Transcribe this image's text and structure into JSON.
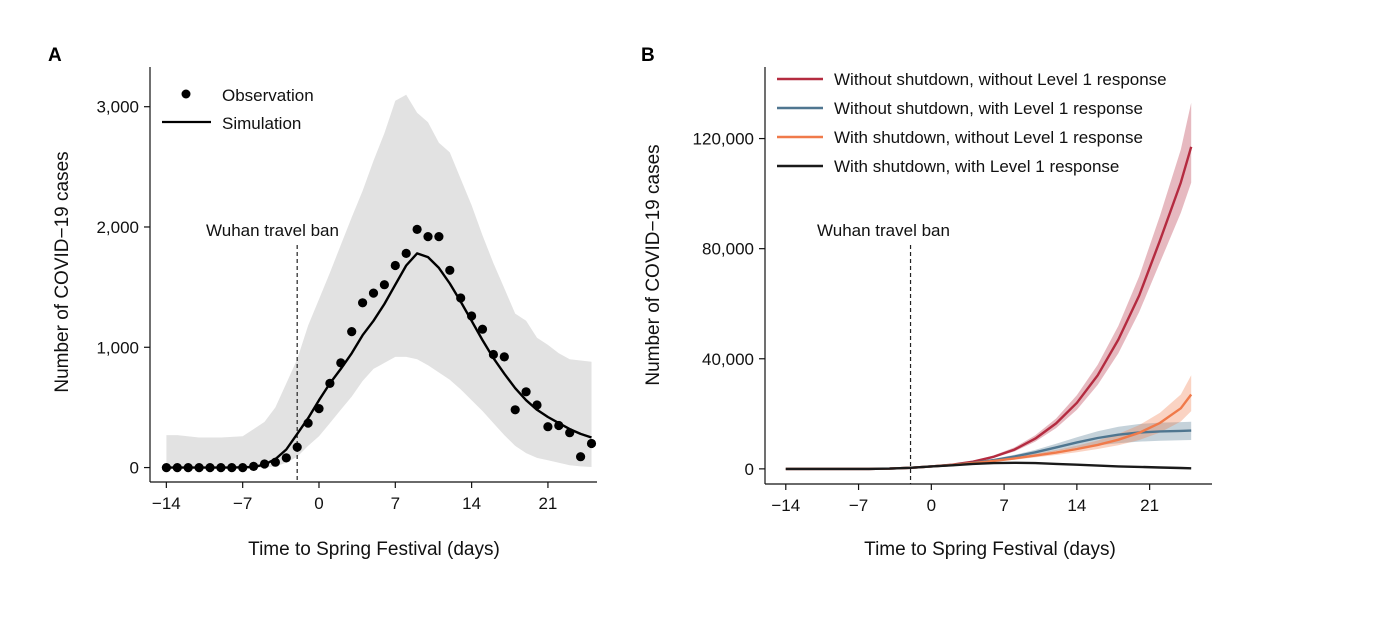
{
  "chart_data": [
    {
      "panel": "A",
      "type": "line",
      "xlabel": "Time to Spring Festival (days)",
      "ylabel": "Number of COVID−19 cases",
      "xlim": [
        -15.5,
        25.5
      ],
      "ylim": [
        -120,
        3330
      ],
      "xticks": [
        -14,
        -7,
        0,
        7,
        14,
        21
      ],
      "xtick_labels": [
        "−14",
        "−7",
        "0",
        "7",
        "14",
        "21"
      ],
      "yticks": [
        0,
        1000,
        2000,
        3000
      ],
      "ytick_labels": [
        "0",
        "1,000",
        "2,000",
        "3,000"
      ],
      "grid": false,
      "legend_position": "top-left",
      "series": [
        {
          "name": "Observation",
          "kind": "points",
          "color": "#000000",
          "x": [
            -14,
            -13,
            -12,
            -11,
            -10,
            -9,
            -8,
            -7,
            -6,
            -5,
            -4,
            -3,
            -2,
            -1,
            0,
            1,
            2,
            3,
            4,
            5,
            6,
            7,
            8,
            9,
            10,
            11,
            12,
            13,
            14,
            15,
            16,
            17,
            18,
            19,
            20,
            21,
            22,
            23,
            24,
            25
          ],
          "y": [
            0,
            0,
            0,
            0,
            0,
            0,
            0,
            0,
            10,
            30,
            45,
            80,
            170,
            370,
            490,
            700,
            870,
            1130,
            1370,
            1450,
            1520,
            1680,
            1780,
            1980,
            1920,
            1920,
            1640,
            1410,
            1260,
            1150,
            940,
            920,
            480,
            630,
            520,
            340,
            350,
            290,
            90,
            200
          ]
        },
        {
          "name": "Simulation",
          "kind": "line",
          "color": "#000000",
          "x": [
            -14,
            -12,
            -10,
            -8,
            -6,
            -5,
            -4,
            -3,
            -2,
            -1,
            0,
            1,
            2,
            3,
            4,
            5,
            6,
            7,
            8,
            9,
            10,
            11,
            12,
            13,
            14,
            15,
            16,
            17,
            18,
            19,
            20,
            21,
            22,
            23,
            24,
            25
          ],
          "y": [
            0,
            0,
            0,
            0,
            5,
            25,
            70,
            150,
            280,
            410,
            560,
            700,
            820,
            950,
            1100,
            1220,
            1360,
            1520,
            1680,
            1780,
            1750,
            1660,
            1530,
            1380,
            1220,
            1060,
            910,
            780,
            660,
            560,
            480,
            420,
            370,
            320,
            280,
            250
          ]
        },
        {
          "name": "",
          "kind": "band",
          "color": "#e2e2e2",
          "x": [
            -14,
            -13,
            -11,
            -9,
            -7,
            -6,
            -5,
            -4,
            -3,
            -2,
            -1,
            0,
            1,
            2,
            3,
            4,
            5,
            6,
            7,
            8,
            9,
            10,
            11,
            12,
            13,
            14,
            15,
            16,
            17,
            18,
            19,
            20,
            21,
            22,
            23,
            24,
            25
          ],
          "lower": [
            0,
            0,
            0,
            0,
            0,
            0,
            0,
            10,
            40,
            90,
            180,
            260,
            370,
            480,
            590,
            720,
            820,
            870,
            920,
            920,
            900,
            850,
            790,
            730,
            650,
            560,
            470,
            370,
            270,
            180,
            120,
            80,
            60,
            40,
            20,
            10,
            5
          ],
          "upper": [
            270,
            270,
            250,
            250,
            260,
            320,
            380,
            500,
            700,
            900,
            1180,
            1400,
            1620,
            1850,
            2080,
            2300,
            2550,
            2780,
            3050,
            3100,
            2950,
            2870,
            2700,
            2620,
            2400,
            2180,
            1930,
            1700,
            1490,
            1280,
            1220,
            1080,
            1020,
            950,
            900,
            890,
            880
          ]
        }
      ],
      "annotations": [
        {
          "text": "Wuhan travel ban",
          "x": -2,
          "kind": "vline-dashed"
        }
      ]
    },
    {
      "panel": "B",
      "type": "line",
      "xlabel": "Time to Spring Festival (days)",
      "ylabel": "Number of COVID−19 cases",
      "xlim": [
        -16,
        27
      ],
      "ylim": [
        -5500,
        146000
      ],
      "xticks": [
        -14,
        -7,
        0,
        7,
        14,
        21
      ],
      "xtick_labels": [
        "−14",
        "−7",
        "0",
        "7",
        "14",
        "21"
      ],
      "yticks": [
        0,
        40000,
        80000,
        120000
      ],
      "ytick_labels": [
        "0",
        "40,000",
        "80,000",
        "120,000"
      ],
      "grid": false,
      "legend_position": "top-left",
      "series": [
        {
          "name": "Without shutdown, without Level 1 response",
          "color": "#b42b40",
          "x": [
            -14,
            -10,
            -6,
            -4,
            -2,
            0,
            2,
            4,
            6,
            8,
            10,
            12,
            14,
            16,
            18,
            20,
            22,
            24,
            25
          ],
          "y": [
            0,
            0,
            0,
            100,
            400,
            900,
            1500,
            2600,
            4400,
            7000,
            11000,
            16500,
            24000,
            34000,
            47000,
            63000,
            83000,
            104000,
            117000
          ],
          "band_lower": [
            0,
            0,
            0,
            100,
            380,
            850,
            1400,
            2400,
            4000,
            6300,
            9900,
            14800,
            21500,
            30500,
            42000,
            57000,
            75000,
            93000,
            104000
          ],
          "band_upper": [
            0,
            0,
            0,
            120,
            430,
            950,
            1600,
            2800,
            4900,
            7800,
            12200,
            18300,
            26800,
            37800,
            52000,
            70000,
            92000,
            116000,
            133000
          ]
        },
        {
          "name": "Without shutdown, with Level 1 response",
          "color": "#4f7690",
          "x": [
            -14,
            -10,
            -6,
            -4,
            -2,
            0,
            2,
            4,
            6,
            8,
            10,
            12,
            14,
            16,
            18,
            20,
            22,
            24,
            25
          ],
          "y": [
            0,
            0,
            0,
            100,
            400,
            900,
            1400,
            2200,
            3200,
            4500,
            6000,
            7800,
            9600,
            11200,
            12400,
            13200,
            13600,
            13800,
            13900
          ],
          "band_lower": [
            0,
            0,
            0,
            90,
            360,
            800,
            1250,
            1950,
            2800,
            3900,
            5100,
            6500,
            7700,
            8600,
            9300,
            9900,
            10200,
            10400,
            10500
          ],
          "band_upper": [
            0,
            0,
            0,
            110,
            440,
            1000,
            1550,
            2450,
            3600,
            5100,
            6900,
            9100,
            11500,
            13700,
            15300,
            16300,
            16800,
            17000,
            17100
          ]
        },
        {
          "name": "With shutdown, without Level 1 response",
          "color": "#f07a4a",
          "x": [
            -14,
            -10,
            -6,
            -4,
            -2,
            0,
            2,
            4,
            6,
            8,
            10,
            12,
            14,
            16,
            18,
            20,
            22,
            24,
            25
          ],
          "y": [
            0,
            0,
            0,
            100,
            400,
            900,
            1400,
            2100,
            2900,
            3800,
            4800,
            5900,
            7200,
            8700,
            10600,
            13100,
            16700,
            22000,
            27000
          ],
          "band_lower": [
            0,
            0,
            0,
            90,
            360,
            820,
            1260,
            1880,
            2550,
            3300,
            4150,
            5050,
            6050,
            7200,
            8600,
            10500,
            13200,
            17200,
            21000
          ],
          "band_upper": [
            0,
            0,
            0,
            110,
            440,
            980,
            1540,
            2320,
            3250,
            4300,
            5500,
            6800,
            8400,
            10300,
            12700,
            15900,
            20400,
            27000,
            34000
          ]
        },
        {
          "name": "With shutdown, with Level 1 response",
          "color": "#1a1a1a",
          "x": [
            -14,
            -10,
            -6,
            -4,
            -2,
            0,
            2,
            4,
            6,
            8,
            10,
            12,
            14,
            16,
            18,
            20,
            22,
            24,
            25
          ],
          "y": [
            0,
            0,
            0,
            100,
            400,
            900,
            1300,
            1800,
            2100,
            2200,
            2100,
            1800,
            1500,
            1200,
            900,
            700,
            500,
            300,
            200
          ]
        }
      ],
      "annotations": [
        {
          "text": "Wuhan travel ban",
          "x": -2,
          "kind": "vline-dashed"
        }
      ]
    }
  ]
}
